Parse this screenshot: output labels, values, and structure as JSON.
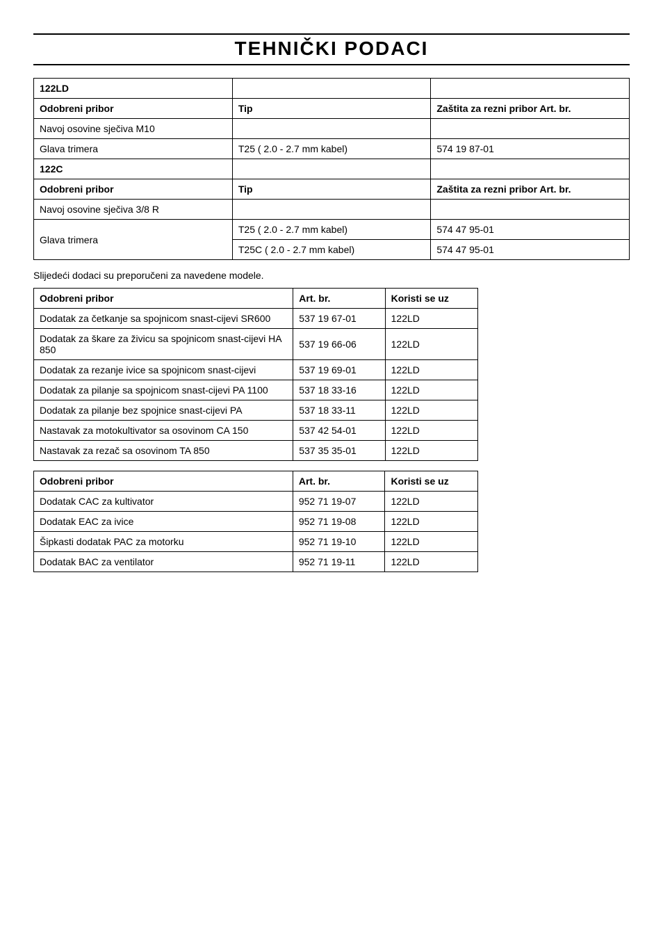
{
  "page": {
    "title": "TEHNIČKI  PODACI"
  },
  "table1": {
    "model_a": "122LD",
    "headers_a": {
      "c1": "Odobreni pribor",
      "c2": "Tip",
      "c3": "Zaštita za rezni pribor Art. br."
    },
    "row_a1": {
      "c1": "Navoj osovine sječiva M10",
      "c2": "",
      "c3": ""
    },
    "row_a2": {
      "c1": "Glava trimera",
      "c2": "T25 (    2.0 - 2.7 mm kabel)",
      "c3": "574 19 87-01"
    },
    "model_b": "122C",
    "headers_b": {
      "c1": "Odobreni pribor",
      "c2": "Tip",
      "c3": "Zaštita za rezni pribor Art. br."
    },
    "row_b1": {
      "c1": "Navoj osovine sječiva 3/8 R",
      "c2": "",
      "c3": ""
    },
    "row_b2": {
      "c1": "Glava trimera",
      "c2a": "T25 (    2.0 - 2.7 mm kabel)",
      "c3a": "574 47 95-01",
      "c2b": "T25C (   2.0 - 2.7 mm kabel)",
      "c3b": "574 47 95-01"
    }
  },
  "note": "Slijedeći dodaci su preporučeni za navedene modele.",
  "table2": {
    "headers": {
      "c1": "Odobreni pribor",
      "c2": "Art. br.",
      "c3": "Koristi se uz"
    },
    "rows": [
      {
        "c1": "Dodatak za četkanje sa spojnicom snast-cijevi SR600",
        "c2": "537 19 67-01",
        "c3": "122LD"
      },
      {
        "c1": "Dodatak za škare za živicu sa spojnicom snast-cijevi HA 850",
        "c2": "537 19 66-06",
        "c3": "122LD"
      },
      {
        "c1": "Dodatak za rezanje ivice sa spojnicom snast-cijevi",
        "c2": "537 19 69-01",
        "c3": "122LD"
      },
      {
        "c1": "Dodatak za pilanje sa spojnicom snast-cijevi PA 1100",
        "c2": "537 18 33-16",
        "c3": "122LD"
      },
      {
        "c1": "Dodatak za pilanje bez spojnice snast-cijevi PA",
        "c2": "537 18 33-11",
        "c3": "122LD"
      },
      {
        "c1": "Nastavak za motokultivator sa osovinom CA 150",
        "c2": "537 42 54-01",
        "c3": "122LD"
      },
      {
        "c1": "Nastavak za rezač sa osovinom TA 850",
        "c2": "537 35 35-01",
        "c3": "122LD"
      }
    ]
  },
  "table3": {
    "headers": {
      "c1": "Odobreni pribor",
      "c2": "Art. br.",
      "c3": "Koristi se uz"
    },
    "rows": [
      {
        "c1": "Dodatak CAC za kultivator",
        "c2": "952 71 19-07",
        "c3": "122LD"
      },
      {
        "c1": "Dodatak EAC za ivice",
        "c2": "952 71 19-08",
        "c3": "122LD"
      },
      {
        "c1": "Šipkasti dodatak PAC za motorku",
        "c2": "952 71 19-10",
        "c3": "122LD"
      },
      {
        "c1": "Dodatak BAC za ventilator",
        "c2": "952 71 19-11",
        "c3": "122LD"
      }
    ]
  }
}
